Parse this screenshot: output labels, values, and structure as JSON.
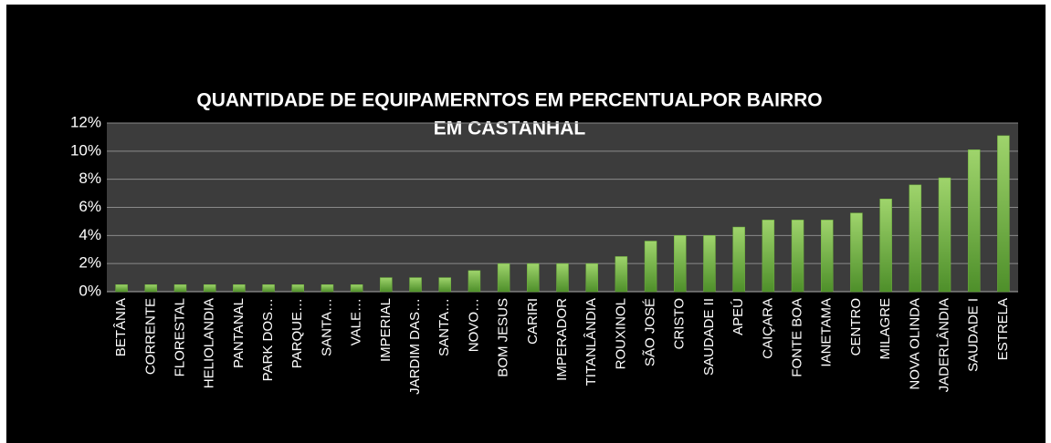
{
  "chart_data": {
    "type": "bar",
    "title": [
      "QUANTIDADE DE EQUIPAMERNTOS EM PERCENTUALPOR BAIRRO",
      "EM CASTANHAL"
    ],
    "categories": [
      "BETÂNIA",
      "CORRENTE",
      "FLORESTAL",
      "HELIOLANDIA",
      "PANTANAL",
      "PARK DOS…",
      "PARQUE…",
      "SANTA…",
      "VALE…",
      "IMPERIAL",
      "JARDIM DAS…",
      "SANTA…",
      "NOVO…",
      "BOM JESUS",
      "CARIRI",
      "IMPERADOR",
      "TITANLÂNDIA",
      "ROUXINOL",
      "SÃO JOSÉ",
      "CRISTO",
      "SAUDADE II",
      "APEÚ",
      "CAIÇARA",
      "FONTE BOA",
      "IANETAMA",
      "CENTRO",
      "MILAGRE",
      "NOVA OLINDA",
      "JADERLÂNDIA",
      "SAUDADE I",
      "ESTRELA"
    ],
    "values": [
      0.5,
      0.5,
      0.5,
      0.5,
      0.5,
      0.5,
      0.5,
      0.5,
      0.5,
      1,
      1,
      1,
      1.5,
      2,
      2,
      2,
      2,
      2.5,
      3.6,
      4,
      4,
      4.6,
      5.1,
      5.1,
      5.1,
      5.6,
      6.6,
      7.6,
      8.1,
      10.1,
      11.1
    ],
    "color": "#6fb23c",
    "ylim": [
      0,
      12
    ],
    "yticks": [
      {
        "value": 0,
        "label": "0%"
      },
      {
        "value": 2,
        "label": "2%"
      },
      {
        "value": 4,
        "label": "4%"
      },
      {
        "value": 6,
        "label": "6%"
      },
      {
        "value": 8,
        "label": "8%"
      },
      {
        "value": 10,
        "label": "10%"
      },
      {
        "value": 12,
        "label": "12%"
      }
    ],
    "grid": true
  }
}
